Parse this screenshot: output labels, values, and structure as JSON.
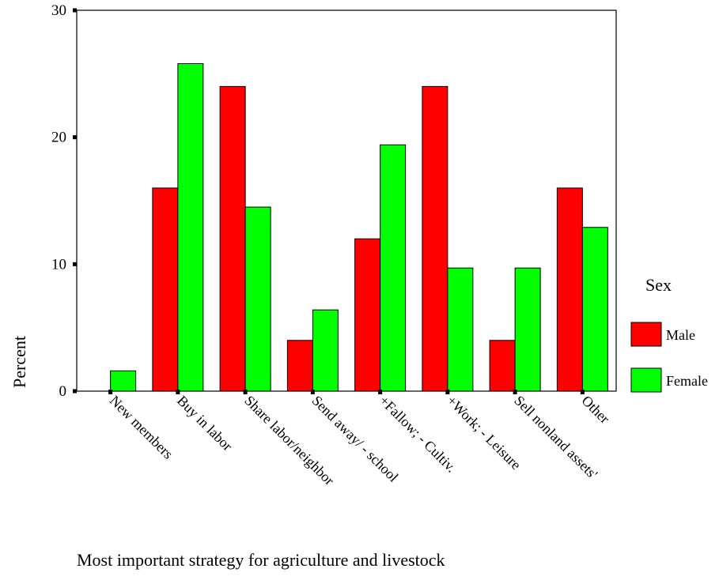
{
  "chart_data": {
    "type": "bar",
    "categories": [
      "New members",
      "Buy in labor",
      "Share labor/neighbor",
      "Send away/ - school",
      "+Fallow; - Cultiv.",
      "+Work; - Leisure",
      "Sell nonland assets'",
      "Other"
    ],
    "series": [
      {
        "name": "Male",
        "color": "#ff0000",
        "values": [
          0,
          16,
          24,
          4,
          12,
          24,
          4,
          16
        ]
      },
      {
        "name": "Female",
        "color": "#00ff00",
        "values": [
          1.6,
          25.8,
          14.5,
          6.4,
          19.4,
          9.7,
          9.7,
          12.9
        ]
      }
    ],
    "title": "",
    "xlabel": "Most important strategy for agriculture and livestock",
    "ylabel": "Percent",
    "ylim": [
      0,
      30
    ],
    "yticks": [
      0,
      10,
      20,
      30
    ],
    "legend": {
      "title": "Sex",
      "position": "right"
    },
    "grid": false
  }
}
